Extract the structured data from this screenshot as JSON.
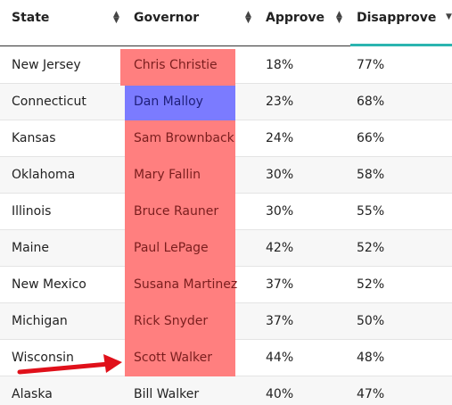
{
  "table": {
    "header": [
      "State",
      "Governor",
      "Approve",
      "Disapprove"
    ],
    "rows": [
      [
        "New Jersey",
        "Chris Christie",
        "18%",
        "77%"
      ],
      [
        "Connecticut",
        "Dan Malloy",
        "23%",
        "68%"
      ],
      [
        "Kansas",
        "Sam Brownback",
        "24%",
        "66%"
      ],
      [
        "Oklahoma",
        "Mary Fallin",
        "30%",
        "58%"
      ],
      [
        "Illinois",
        "Bruce Rauner",
        "30%",
        "55%"
      ],
      [
        "Maine",
        "Paul LePage",
        "42%",
        "52%"
      ],
      [
        "New Mexico",
        "Susana Martinez",
        "37%",
        "52%"
      ],
      [
        "Michigan",
        "Rick Snyder",
        "37%",
        "50%"
      ],
      [
        "Wisconsin",
        "Scott Walker",
        "44%",
        "48%"
      ],
      [
        "Alaska",
        "Bill Walker",
        "40%",
        "47%"
      ]
    ]
  }
}
